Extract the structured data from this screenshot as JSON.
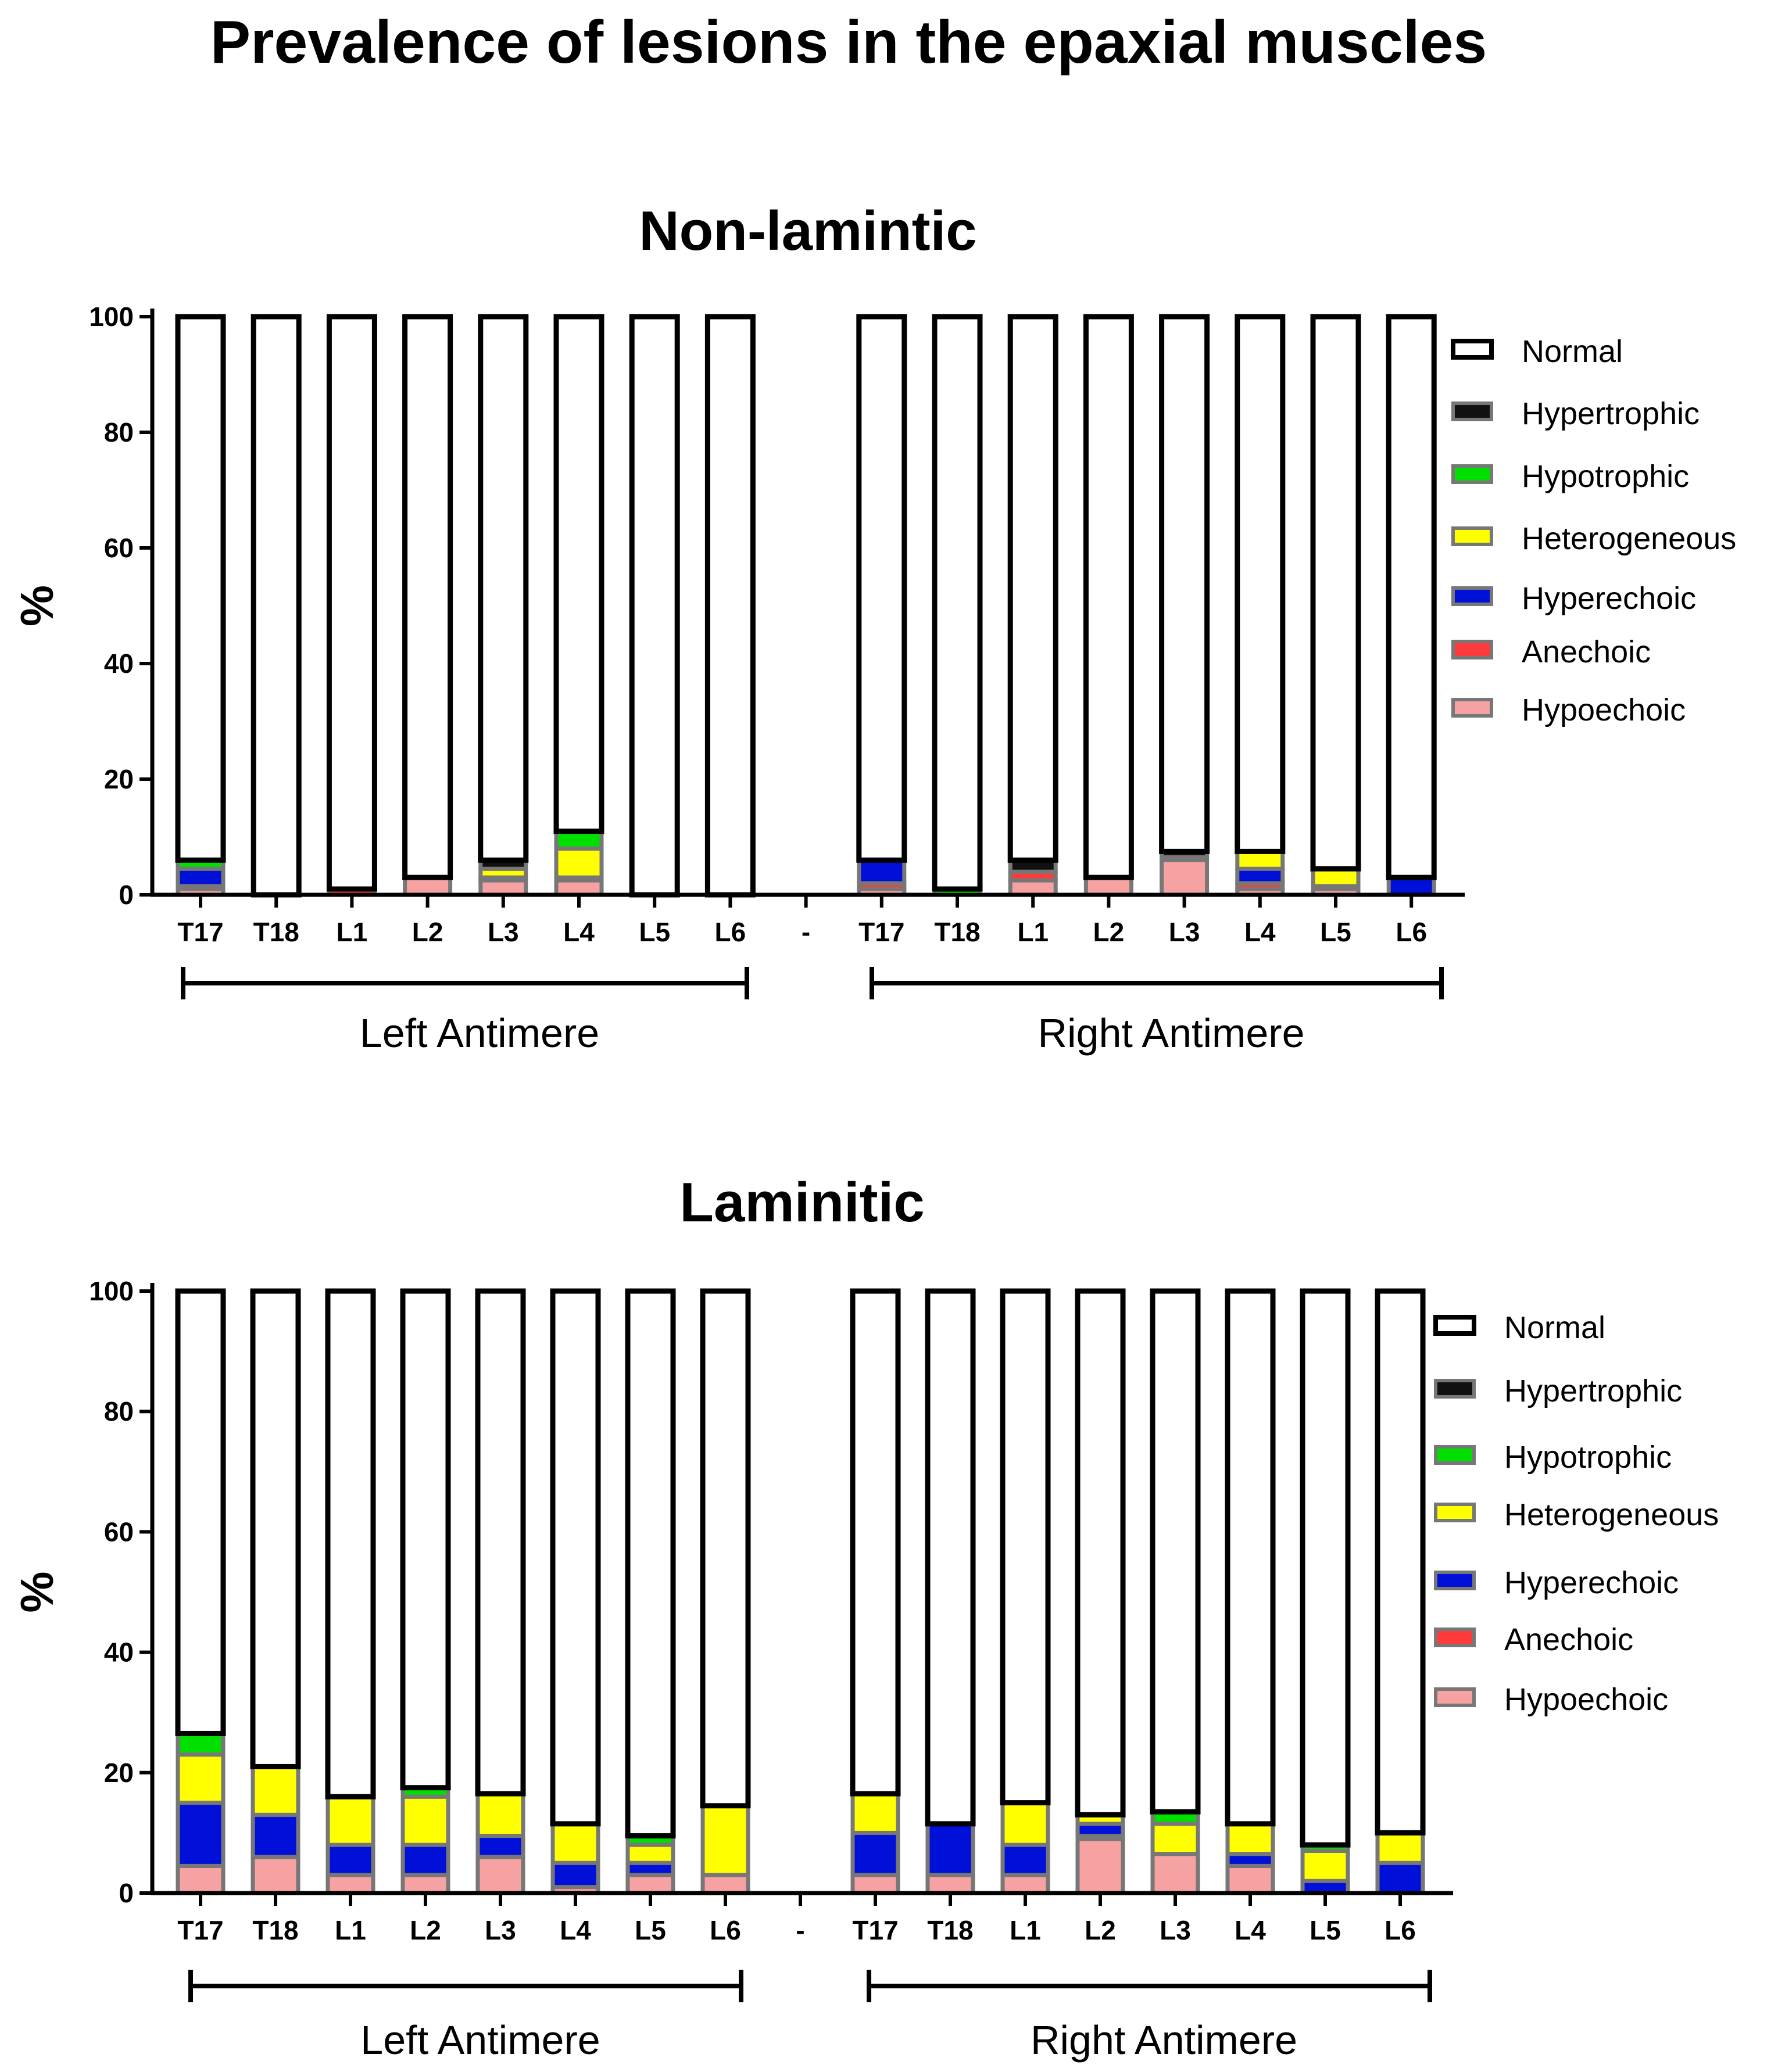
{
  "title": "Prevalence of lesions in the epaxial muscles",
  "colors": {
    "Hypoechoic": "#f7a2a2",
    "Anechoic": "#ff3a3a",
    "Hyperechoic": "#0010d8",
    "Heterogeneous": "#ffff00",
    "Hypotrophic": "#00e000",
    "Hypertrophic": "#111111",
    "Normal": "#ffffff"
  },
  "chart_data": [
    {
      "type": "bar",
      "stacked": true,
      "title": "Non-lamintic",
      "xlabel": "",
      "ylabel": "%",
      "ylim": [
        0,
        100
      ],
      "yticks": [
        "0",
        "20",
        "40",
        "60",
        "80",
        "100"
      ],
      "categories": [
        "T17",
        "T18",
        "L1",
        "L2",
        "L3",
        "L4",
        "L5",
        "L6",
        "-",
        "T17",
        "T18",
        "L1",
        "L2",
        "L3",
        "L4",
        "L5",
        "L6"
      ],
      "groups": [
        "Left Antimere",
        "Right Antimere"
      ],
      "legend": [
        "Normal",
        "Hypertrophic",
        "Hypotrophic",
        "Heterogeneous",
        "Hyperechoic",
        "Anechoic",
        "Hypoechoic"
      ],
      "series": [
        {
          "name": "Hypoechoic",
          "values": [
            1,
            0,
            0,
            3,
            2.5,
            2.5,
            0,
            0,
            0,
            1,
            0,
            2.5,
            3,
            6,
            1,
            1,
            0
          ]
        },
        {
          "name": "Anechoic",
          "values": [
            0.5,
            0,
            1,
            0,
            0.5,
            0.5,
            0,
            0,
            0,
            1,
            0,
            1.5,
            0,
            0.5,
            1,
            0.5,
            0
          ]
        },
        {
          "name": "Hyperechoic",
          "values": [
            3,
            0,
            0,
            0,
            0,
            0,
            0,
            0,
            0,
            4,
            0,
            0,
            0,
            0,
            2.5,
            0,
            3
          ]
        },
        {
          "name": "Heterogeneous",
          "values": [
            0,
            0,
            0,
            0,
            1.5,
            5,
            0,
            0,
            0,
            0,
            0,
            0,
            0,
            0,
            3,
            3,
            0
          ]
        },
        {
          "name": "Hypotrophic",
          "values": [
            1.5,
            0,
            0,
            0,
            0,
            3,
            0,
            0,
            0,
            0,
            1,
            0,
            0,
            0,
            0,
            0,
            0
          ]
        },
        {
          "name": "Hypertrophic",
          "values": [
            0,
            0,
            0,
            0,
            1.5,
            0,
            0,
            0,
            0,
            0,
            0,
            2,
            0,
            1,
            0,
            0,
            0
          ]
        },
        {
          "name": "Normal",
          "values": [
            94,
            100,
            99,
            97,
            94,
            89,
            100,
            100,
            0,
            94,
            99,
            94,
            97,
            92.5,
            92.5,
            95.5,
            97
          ]
        }
      ]
    },
    {
      "type": "bar",
      "stacked": true,
      "title": "Laminitic",
      "xlabel": "",
      "ylabel": "%",
      "ylim": [
        0,
        100
      ],
      "yticks": [
        "0",
        "20",
        "40",
        "60",
        "80",
        "100"
      ],
      "categories": [
        "T17",
        "T18",
        "L1",
        "L2",
        "L3",
        "L4",
        "L5",
        "L6",
        "-",
        "T17",
        "T18",
        "L1",
        "L2",
        "L3",
        "L4",
        "L5",
        "L6"
      ],
      "groups": [
        "Left Antimere",
        "Right Antimere"
      ],
      "legend": [
        "Normal",
        "Hypertrophic",
        "Hypotrophic",
        "Heterogeneous",
        "Hyperechoic",
        "Anechoic",
        "Hypoechoic"
      ],
      "series": [
        {
          "name": "Hypoechoic",
          "values": [
            4.5,
            6,
            3,
            3,
            6,
            1,
            3,
            3,
            0,
            3,
            3,
            3,
            9,
            6.5,
            4.5,
            0,
            0
          ]
        },
        {
          "name": "Anechoic",
          "values": [
            0,
            0,
            0,
            0,
            0,
            0,
            0,
            0,
            0,
            0,
            0,
            0,
            0.5,
            0,
            0,
            0,
            0
          ]
        },
        {
          "name": "Hyperechoic",
          "values": [
            10.5,
            7,
            5,
            5,
            3.5,
            4,
            2,
            0,
            0,
            7,
            8.5,
            5,
            2,
            0,
            2,
            2,
            5
          ]
        },
        {
          "name": "Heterogeneous",
          "values": [
            8,
            8,
            8,
            8,
            7,
            6.5,
            3,
            11.5,
            0,
            6.5,
            0,
            7,
            1.5,
            5,
            5,
            5,
            5
          ]
        },
        {
          "name": "Hypotrophic",
          "values": [
            3.5,
            0,
            0,
            1.5,
            0,
            0,
            1.5,
            0,
            0,
            0,
            0,
            0,
            0,
            2,
            0,
            1,
            0
          ]
        },
        {
          "name": "Hypertrophic",
          "values": [
            0,
            0,
            0,
            0,
            0,
            0,
            0,
            0,
            0,
            0,
            0,
            0,
            0,
            0,
            0,
            0,
            0
          ]
        },
        {
          "name": "Normal",
          "values": [
            73.5,
            79,
            84,
            82.5,
            83.5,
            88.5,
            90.5,
            85.5,
            0,
            83.5,
            88.5,
            85,
            87,
            86.5,
            88.5,
            92,
            90
          ]
        }
      ]
    }
  ]
}
